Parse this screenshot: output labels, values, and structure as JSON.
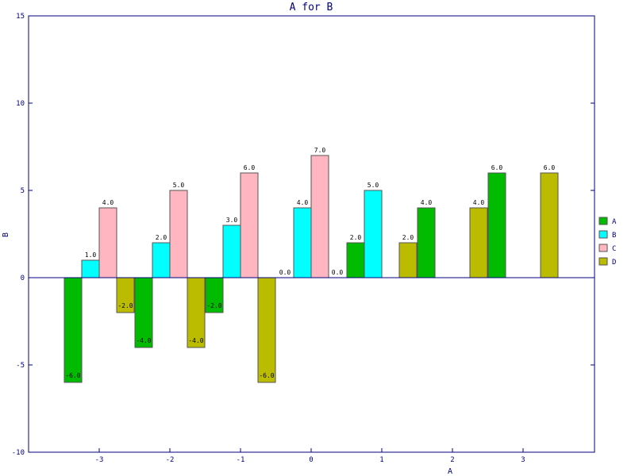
{
  "chart_data": {
    "type": "bar",
    "title": "A for B",
    "xlabel": "A",
    "ylabel": "B",
    "ylim": [
      -10,
      15
    ],
    "yticks": [
      -10,
      -5,
      0,
      5,
      10,
      15
    ],
    "xlim": [
      -4,
      4
    ],
    "xticks": [
      -3,
      -2,
      -1,
      0,
      1,
      2,
      3
    ],
    "grid": false,
    "legend_position": "right",
    "series": [
      {
        "name": "A",
        "color": "#00bb00",
        "points": [
          {
            "x": -3,
            "y": -6,
            "label": "-6.0"
          },
          {
            "x": -2,
            "y": -4,
            "label": "-4.0"
          },
          {
            "x": -1,
            "y": -2,
            "label": "-2.0"
          },
          {
            "x": 0,
            "y": 0,
            "label": "0.0"
          },
          {
            "x": 1,
            "y": 2,
            "label": "2.0"
          },
          {
            "x": 2,
            "y": 4,
            "label": "4.0"
          },
          {
            "x": 3,
            "y": 6,
            "label": "6.0"
          }
        ]
      },
      {
        "name": "B",
        "color": "#00ffff",
        "points": [
          {
            "x": -3,
            "y": 1,
            "label": "1.0"
          },
          {
            "x": -2,
            "y": 2,
            "label": "2.0"
          },
          {
            "x": -1,
            "y": 3,
            "label": "3.0"
          },
          {
            "x": 0,
            "y": 4,
            "label": "4.0"
          },
          {
            "x": 1,
            "y": 5,
            "label": "5.0"
          }
        ]
      },
      {
        "name": "C",
        "color": "#ffb6c1",
        "points": [
          {
            "x": -3,
            "y": 4,
            "label": "4.0"
          },
          {
            "x": -2,
            "y": 5,
            "label": "5.0"
          },
          {
            "x": -1,
            "y": 6,
            "label": "6.0"
          },
          {
            "x": 0,
            "y": 7,
            "label": "7.0"
          }
        ]
      },
      {
        "name": "D",
        "color": "#bbbb00",
        "points": [
          {
            "x": -3,
            "y": -2,
            "label": "-2.0"
          },
          {
            "x": -2,
            "y": -4,
            "label": "-4.0"
          },
          {
            "x": -1,
            "y": -6,
            "label": "-6.0"
          },
          {
            "x": 0,
            "y": 0,
            "label": "0.0"
          },
          {
            "x": 1,
            "y": 2,
            "label": "2.0"
          },
          {
            "x": 2,
            "y": 4,
            "label": "4.0"
          },
          {
            "x": 3,
            "y": 6,
            "label": "6.0"
          }
        ]
      }
    ]
  },
  "colors": {
    "axis": "#000080",
    "bar_border": "#555555",
    "background": "#ffffff"
  }
}
